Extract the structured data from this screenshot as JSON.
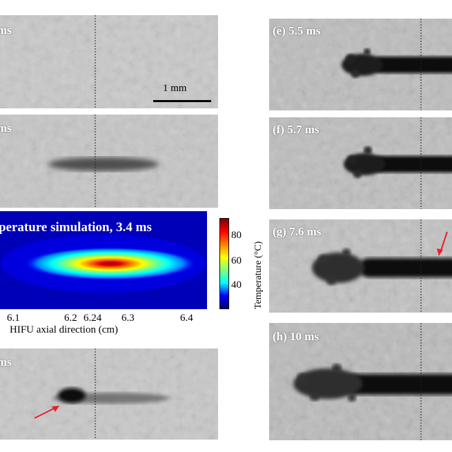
{
  "figure": {
    "panels": [
      {
        "id": "a",
        "label": "ms"
      },
      {
        "id": "b",
        "label": "ms"
      },
      {
        "id": "d",
        "label": "ms"
      },
      {
        "id": "e",
        "label": "(e)  5.5 ms"
      },
      {
        "id": "f",
        "label": "(f)  5.7 ms"
      },
      {
        "id": "g",
        "label": "(g)  7.6 ms"
      },
      {
        "id": "h",
        "label": "(h)  10 ms"
      }
    ],
    "scale_bar": {
      "label": "1 mm"
    },
    "simulation": {
      "title": "perature simulation, 3.4 ms",
      "x_ticks": [
        "6.1",
        "6.2",
        "6.24",
        "6.3",
        "6.4"
      ],
      "x_label": "HIFU axial direction (cm)",
      "colorbar": {
        "ticks": [
          "80",
          "60",
          "40"
        ],
        "label": "Temperature (°C)",
        "colors": [
          "#00007f",
          "#0000ff",
          "#00ffff",
          "#7fff7f",
          "#ffff00",
          "#ff7f00",
          "#ff0000",
          "#7f0000"
        ]
      }
    },
    "arrow_color": "#e8202a"
  }
}
